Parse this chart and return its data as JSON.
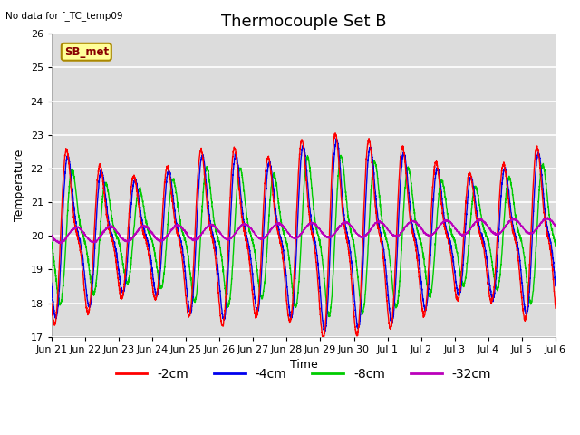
{
  "title": "Thermocouple Set B",
  "subtitle": "No data for f_TC_temp09",
  "xlabel": "Time",
  "ylabel": "Temperature",
  "ylim": [
    17.0,
    26.0
  ],
  "yticks": [
    17.0,
    18.0,
    19.0,
    20.0,
    21.0,
    22.0,
    23.0,
    24.0,
    25.0,
    26.0
  ],
  "bg_color": "#dcdcdc",
  "line_colors": {
    "-2cm": "#ff0000",
    "-4cm": "#0000ee",
    "-8cm": "#00cc00",
    "-32cm": "#bb00bb"
  },
  "legend_labels": [
    "-2cm",
    "-4cm",
    "-8cm",
    "-32cm"
  ],
  "legend_box_label": "SB_met",
  "legend_box_color": "#ffff99",
  "legend_box_border": "#aa8800",
  "xtick_labels": [
    "Jun 21",
    "Jun 22",
    "Jun 23",
    "Jun 24",
    "Jun 25",
    "Jun 26",
    "Jun 27",
    "Jun 28",
    "Jun 29",
    "Jun 30",
    "Jul 1",
    "Jul 2",
    "Jul 3",
    "Jul 4",
    "Jul 5",
    "Jul 6"
  ],
  "title_fontsize": 13,
  "axis_fontsize": 9,
  "tick_fontsize": 8,
  "legend_fontsize": 10
}
